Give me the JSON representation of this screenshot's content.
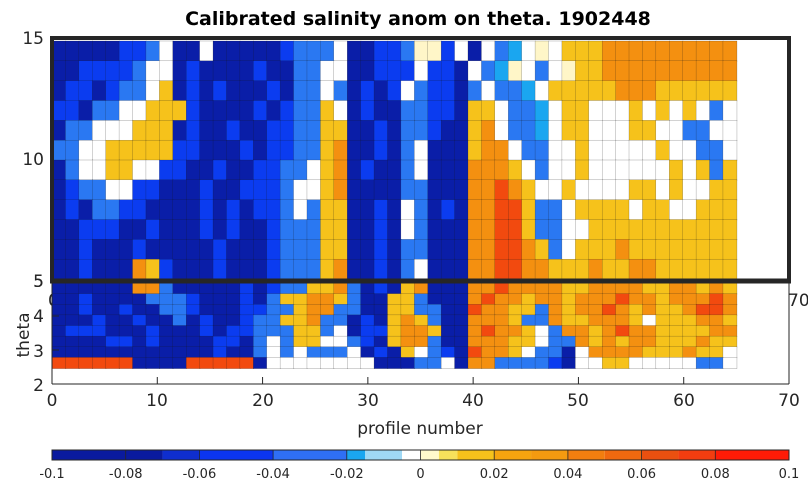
{
  "chart_data": [
    {
      "type": "heatmap",
      "title": "Calibrated salinity anom on theta. 1902448",
      "xlabel": "",
      "ylabel": "",
      "xlim": [
        0,
        70
      ],
      "ylim": [
        5,
        15
      ],
      "yticks": [
        "15",
        "10",
        "5"
      ],
      "xticks_partially_hidden": [
        "0",
        "70"
      ],
      "profiles": [
        0,
        65
      ],
      "grid": false,
      "variable": "salinity anomaly",
      "pattern_rows_theta_high_to_low": [
        "BBBBBbbLWBBWBBBBBbLLLWBBbbLwwbWBWLlWwWYYYOOOOOOOOOO",
        "BBbbbbLWWBbBBBBbBBLLWWBBbbbWbbBWLlwWLWwYYOOOOOOOOOO",
        "BbbBbLLWYBbBbBBBbBLLWLBbBbWLbbBLWLLlWYYYYYOOOYYYYYY",
        "bbBLLWWYYYbBBBBbBbLLYWBbBBLLbbBYYWLLlWYYWWWYWYWYWLW",
        "BLLWWWYYYBbBBbBBbbLLYYBBbBLLbBBYOWLLlWYYWWWYYWWLLWW",
        "LLWWYYYYYbbBBBbBbbLLYOBBbBLWBBBYOOWLLWWYWWWWWYWWLLW",
        "BLWWYYWWbbBBbBBbbLLWYOBbBBLWBBBOOOYWLWWYWWWWWWYWYLY",
        "BbLLWWbbBBBbBBbbbLWWYOBBBBLLBBBOOROYWWYWWWWYYWYWWYY",
        "BbBLLbbBBBBbBbBbbLWLYYBBbBWLBbBOORRYLLWYYYYWYYWWYYY",
        "BBbbbBBbBBBbBbBBbLLLYYBBbBWLBBBOORRYLLWWYYYYYYYYYYY",
        "BBbBBBbBBBBBbBBBbLLLYYBBbBLLBBBOORROYLWYYYOYYYYYYYY",
        "BBbBBBOYbBBBbBBBbLLLYOBBbBLWBBBOORROOYYYOYYOOYYYYYY"
      ],
      "pattern_legend": {
        "B": "-0.09",
        "b": "-0.05",
        "L": "-0.03",
        "l": "-0.01",
        "W": "0.00",
        "w": "0.005",
        "Y": "0.015",
        "O": "0.04",
        "R": "0.07"
      }
    },
    {
      "type": "heatmap",
      "title": "",
      "xlabel": "profile number",
      "ylabel": "theta",
      "xlim": [
        0,
        70
      ],
      "ylim": [
        2,
        5
      ],
      "xticks": [
        "0",
        "10",
        "20",
        "30",
        "40",
        "50",
        "60",
        "70"
      ],
      "yticks": [
        "5",
        "4",
        "3",
        "2"
      ],
      "profiles": [
        0,
        65
      ],
      "grid": false,
      "variable": "salinity anomaly",
      "pattern_rows_theta_high_to_low": [
        "BBBBBBOOLBBBBBbBbLLYYOLBbBYOBBBOOROOOOYYOOOOYYOOYOY",
        "BBbBBBBLLLbBBBbBLYYOOYLBBYYLBBBOROOYOOYOOOROOYOOORO",
        "BBbBBbBBLLbBBBbbLLYOOLLBBYYLLBBROOYYLOYOOROYOYYORRO",
        "BBBbBBbBBLBbBBbLLYYOLLBbBYOYLBBOOOYLLOYYOOOYWYYYOOY",
        "BbbbBBBbBBBbBbbLLLYYLWBbbYOOYBBOROOYWLOOYOROOYYYYOO",
        "BBBBbbBbBBBBbbBLWLYYWWLbBYOOLBBOOOYYWLLOYOYOOYYYOYY",
        "BBBBBBBBBBBBbBBLWLWLLLWBbBYWLbBROOYWLLBWOOOOYYYOYYW",
        "RRRRRRBBBBRRRRRBWWWWWWWWBBBLLWBOOLLLLbBWWYYWWWWWLLW"
      ],
      "pattern_legend": {
        "B": "-0.09",
        "b": "-0.05",
        "L": "-0.03",
        "l": "-0.01",
        "W": "0.00",
        "w": "0.005",
        "Y": "0.015",
        "O": "0.04",
        "R": "0.07"
      }
    }
  ],
  "colorbar": {
    "ticks": [
      "-0.1",
      "-0.08",
      "-0.06",
      "-0.04",
      "-0.02",
      "0",
      "0.02",
      "0.04",
      "0.06",
      "0.08",
      "0.1"
    ],
    "range": [
      -0.1,
      0.1
    ],
    "bins": [
      {
        "lo": -0.1,
        "hi": -0.07,
        "color": "#0a1a9e"
      },
      {
        "lo": -0.07,
        "hi": -0.06,
        "color": "#0f2ecf"
      },
      {
        "lo": -0.06,
        "hi": -0.04,
        "color": "#0b35f0"
      },
      {
        "lo": -0.04,
        "hi": -0.02,
        "color": "#2f6ff5"
      },
      {
        "lo": -0.02,
        "hi": -0.015,
        "color": "#1aa6f0"
      },
      {
        "lo": -0.015,
        "hi": -0.005,
        "color": "#9fd8f5"
      },
      {
        "lo": -0.005,
        "hi": 0.0,
        "color": "#ffffff"
      },
      {
        "lo": 0.0,
        "hi": 0.005,
        "color": "#fffacc"
      },
      {
        "lo": 0.005,
        "hi": 0.01,
        "color": "#f7e15b"
      },
      {
        "lo": 0.01,
        "hi": 0.02,
        "color": "#f6c21b"
      },
      {
        "lo": 0.02,
        "hi": 0.03,
        "color": "#f6a40f"
      },
      {
        "lo": 0.03,
        "hi": 0.04,
        "color": "#f49a10"
      },
      {
        "lo": 0.04,
        "hi": 0.05,
        "color": "#f27e0f"
      },
      {
        "lo": 0.05,
        "hi": 0.06,
        "color": "#f0690f"
      },
      {
        "lo": 0.06,
        "hi": 0.07,
        "color": "#ea5010"
      },
      {
        "lo": 0.07,
        "hi": 0.08,
        "color": "#f23d10"
      },
      {
        "lo": 0.08,
        "hi": 0.1,
        "color": "#ff1b06"
      }
    ]
  },
  "colors": {
    "B": "#0a1ea8",
    "b": "#0b3cf0",
    "L": "#2a78f2",
    "l": "#1aa6f0",
    "W": "#ffffff",
    "w": "#fff6c8",
    "Y": "#f6c21b",
    "O": "#f49010",
    "R": "#f24a0f",
    "axis": "#262626"
  }
}
